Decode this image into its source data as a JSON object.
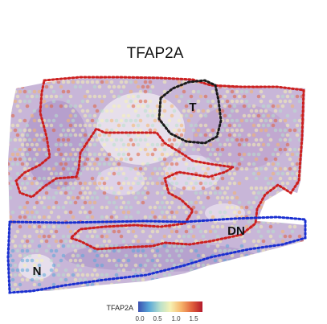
{
  "title": "TFAP2A",
  "regions": [
    {
      "label": "T",
      "color": "#1a1a1a"
    },
    {
      "label": "DN",
      "color": "#cc1f1f"
    },
    {
      "label": "N",
      "color": "#1a2fd0"
    }
  ],
  "colorbar": {
    "title": "TFAP2A",
    "ticks": [
      "0.0",
      "0.5",
      "1.0",
      "1.5"
    ],
    "colors": [
      "#3a4fb0",
      "#5aa8d8",
      "#b8e0cc",
      "#f6f2b4",
      "#f6b46a",
      "#e0603c",
      "#b2182b"
    ]
  }
}
